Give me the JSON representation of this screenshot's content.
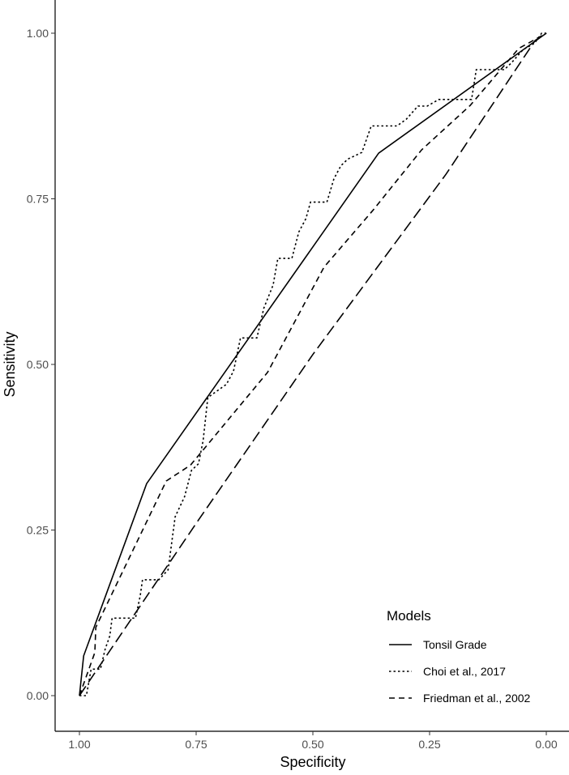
{
  "chart_data": {
    "type": "line",
    "title": "",
    "xlabel": "Specificity",
    "ylabel": "Sensitivity",
    "xlim": [
      1.0,
      0.0
    ],
    "ylim": [
      0.0,
      1.0
    ],
    "x_reversed": true,
    "grid": false,
    "xticks": [
      "1.00",
      "0.75",
      "0.50",
      "0.25",
      "0.00"
    ],
    "yticks": [
      "0.00",
      "0.25",
      "0.50",
      "0.75",
      "1.00"
    ],
    "legend": {
      "title": "Models",
      "placement": "bottom-right"
    },
    "series": [
      {
        "name": "Tonsil Grade",
        "linetype": "solid",
        "x": [
          1.0,
          0.991,
          0.856,
          0.359,
          0.0
        ],
        "y": [
          0.0,
          0.06,
          0.32,
          0.819,
          1.0
        ]
      },
      {
        "name": "Choi et al., 2017",
        "linetype": "dotted",
        "x": [
          1.0,
          0.985,
          0.975,
          0.955,
          0.945,
          0.935,
          0.93,
          0.88,
          0.87,
          0.865,
          0.83,
          0.81,
          0.795,
          0.775,
          0.76,
          0.745,
          0.735,
          0.725,
          0.685,
          0.67,
          0.655,
          0.62,
          0.605,
          0.585,
          0.575,
          0.545,
          0.53,
          0.515,
          0.505,
          0.47,
          0.455,
          0.44,
          0.425,
          0.395,
          0.375,
          0.32,
          0.3,
          0.275,
          0.255,
          0.23,
          0.16,
          0.15,
          0.09,
          0.075,
          0.05,
          0.025,
          0.01,
          0.0
        ],
        "y": [
          0.0,
          0.0,
          0.04,
          0.04,
          0.07,
          0.09,
          0.117,
          0.117,
          0.15,
          0.175,
          0.175,
          0.19,
          0.27,
          0.3,
          0.34,
          0.35,
          0.385,
          0.45,
          0.47,
          0.49,
          0.54,
          0.54,
          0.585,
          0.62,
          0.66,
          0.66,
          0.7,
          0.72,
          0.745,
          0.745,
          0.78,
          0.8,
          0.81,
          0.82,
          0.86,
          0.86,
          0.87,
          0.89,
          0.89,
          0.9,
          0.9,
          0.945,
          0.945,
          0.955,
          0.975,
          0.985,
          1.0,
          1.0
        ]
      },
      {
        "name": "Friedman et al., 2002",
        "linetype": "dashed",
        "x": [
          1.0,
          0.967,
          0.965,
          0.814,
          0.762,
          0.597,
          0.476,
          0.372,
          0.267,
          0.163,
          0.059,
          0.0
        ],
        "y": [
          0.0,
          0.065,
          0.103,
          0.324,
          0.348,
          0.488,
          0.647,
          0.732,
          0.824,
          0.891,
          0.977,
          1.0
        ]
      },
      {
        "linetype": "longdash",
        "x": [
          1.0,
          0.75,
          0.5,
          0.215,
          0.024,
          0.0
        ],
        "y": [
          0.0,
          0.26,
          0.515,
          0.787,
          0.989,
          1.0
        ]
      }
    ]
  }
}
